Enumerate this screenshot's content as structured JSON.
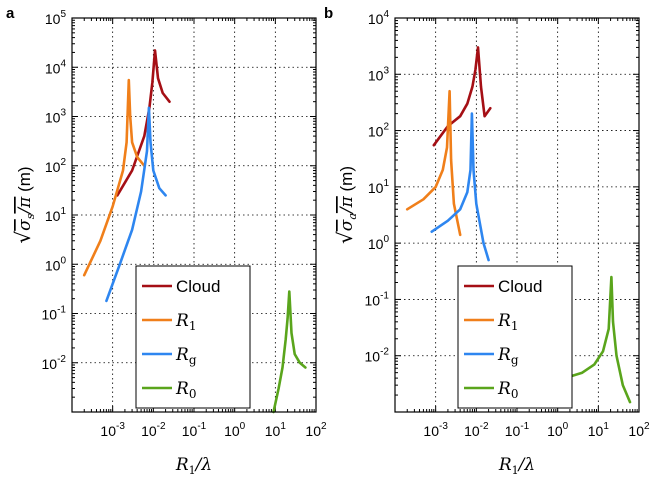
{
  "colors": {
    "Cloud": "#a50f15",
    "R1": "#f07f1a",
    "Rg": "#2e86f0",
    "R0": "#5aa51c"
  },
  "chart_data": [
    {
      "panel_label": "a",
      "type": "line",
      "x_scale": "log",
      "y_scale": "log",
      "grid": true,
      "xlim": [
        0.0001,
        100
      ],
      "ylim": [
        0.001,
        100000
      ],
      "x_ticks": [
        {
          "value": 0.001,
          "base": "10",
          "exp": "-3"
        },
        {
          "value": 0.01,
          "base": "10",
          "exp": "-2"
        },
        {
          "value": 0.1,
          "base": "10",
          "exp": "-1"
        },
        {
          "value": 1,
          "base": "10",
          "exp": "0"
        },
        {
          "value": 10,
          "base": "10",
          "exp": "1"
        },
        {
          "value": 100,
          "base": "10",
          "exp": "2"
        }
      ],
      "y_ticks": [
        {
          "value": 0.01,
          "base": "10",
          "exp": "-2"
        },
        {
          "value": 0.1,
          "base": "10",
          "exp": "-1"
        },
        {
          "value": 1,
          "base": "10",
          "exp": "0"
        },
        {
          "value": 10,
          "base": "10",
          "exp": "1"
        },
        {
          "value": 100,
          "base": "10",
          "exp": "2"
        },
        {
          "value": 1000,
          "base": "10",
          "exp": "3"
        },
        {
          "value": 10000,
          "base": "10",
          "exp": "4"
        },
        {
          "value": 100000,
          "base": "10",
          "exp": "5"
        }
      ],
      "xlabel": {
        "main": "R",
        "sub": "1",
        "tail": "/λ"
      },
      "ylabel": {
        "pre": "√",
        "main": "σ",
        "sub": "s",
        "tail": "/π",
        "unit": " (m)"
      },
      "legend_position": "lower-center",
      "series": [
        {
          "name": "Cloud",
          "key": "Cloud",
          "x": [
            0.0013,
            0.003,
            0.006,
            0.008,
            0.0095,
            0.011,
            0.013,
            0.017,
            0.025
          ],
          "y": [
            25,
            80,
            400,
            1500,
            5000,
            22000,
            6000,
            3000,
            2000
          ]
        },
        {
          "name": "R1",
          "key": "R1",
          "x": [
            0.0002,
            0.0005,
            0.001,
            0.0018,
            0.0022,
            0.0025,
            0.0027,
            0.003,
            0.004,
            0.006
          ],
          "y": [
            0.6,
            3,
            15,
            80,
            300,
            5500,
            1000,
            300,
            150,
            100
          ]
        },
        {
          "name": "Rg",
          "key": "Rg",
          "x": [
            0.0007,
            0.0015,
            0.003,
            0.005,
            0.007,
            0.0078,
            0.0085,
            0.01,
            0.014,
            0.02
          ],
          "y": [
            0.18,
            1,
            5,
            30,
            200,
            1500,
            300,
            80,
            35,
            25
          ]
        },
        {
          "name": "R0",
          "key": "R0",
          "x": [
            9,
            12,
            15,
            18,
            20,
            22,
            25,
            30,
            40,
            55
          ],
          "y": [
            0.001,
            0.003,
            0.008,
            0.03,
            0.08,
            0.28,
            0.04,
            0.015,
            0.01,
            0.008
          ]
        }
      ]
    },
    {
      "panel_label": "b",
      "type": "line",
      "x_scale": "log",
      "y_scale": "log",
      "grid": true,
      "xlim": [
        0.0001,
        100
      ],
      "ylim": [
        0.001,
        10000
      ],
      "x_ticks": [
        {
          "value": 0.001,
          "base": "10",
          "exp": "-3"
        },
        {
          "value": 0.01,
          "base": "10",
          "exp": "-2"
        },
        {
          "value": 0.1,
          "base": "10",
          "exp": "-1"
        },
        {
          "value": 1,
          "base": "10",
          "exp": "0"
        },
        {
          "value": 10,
          "base": "10",
          "exp": "1"
        },
        {
          "value": 100,
          "base": "10",
          "exp": "2"
        }
      ],
      "y_ticks": [
        {
          "value": 0.01,
          "base": "10",
          "exp": "-2"
        },
        {
          "value": 0.1,
          "base": "10",
          "exp": "-1"
        },
        {
          "value": 1,
          "base": "10",
          "exp": "0"
        },
        {
          "value": 10,
          "base": "10",
          "exp": "1"
        },
        {
          "value": 100,
          "base": "10",
          "exp": "2"
        },
        {
          "value": 1000,
          "base": "10",
          "exp": "3"
        },
        {
          "value": 10000,
          "base": "10",
          "exp": "4"
        }
      ],
      "xlabel": {
        "main": "R",
        "sub": "1",
        "tail": "/λ"
      },
      "ylabel": {
        "pre": "√",
        "main": "σ",
        "sub": "a",
        "tail": "/π",
        "unit": " (m)"
      },
      "legend_position": "lower-center",
      "series": [
        {
          "name": "Cloud",
          "key": "Cloud",
          "x": [
            0.0009,
            0.002,
            0.004,
            0.006,
            0.008,
            0.0095,
            0.011,
            0.013,
            0.016,
            0.022
          ],
          "y": [
            55,
            120,
            180,
            300,
            600,
            1200,
            3000,
            600,
            180,
            250
          ]
        },
        {
          "name": "R1",
          "key": "R1",
          "x": [
            0.0002,
            0.0005,
            0.001,
            0.0015,
            0.0019,
            0.0022,
            0.0024,
            0.0028,
            0.004
          ],
          "y": [
            4,
            6,
            10,
            20,
            50,
            500,
            30,
            5,
            1.4
          ]
        },
        {
          "name": "Rg",
          "key": "Rg",
          "x": [
            0.0008,
            0.002,
            0.004,
            0.006,
            0.0072,
            0.0078,
            0.0085,
            0.01,
            0.015,
            0.02
          ],
          "y": [
            1.6,
            2.5,
            4,
            8,
            20,
            200,
            20,
            5,
            1,
            0.5
          ]
        },
        {
          "name": "R0",
          "key": "R0",
          "x": [
            1.5,
            4,
            8,
            13,
            18,
            21,
            23,
            28,
            40,
            60
          ],
          "y": [
            0.004,
            0.005,
            0.007,
            0.012,
            0.03,
            0.25,
            0.04,
            0.01,
            0.003,
            0.0015
          ]
        }
      ]
    }
  ],
  "legend": [
    {
      "key": "Cloud",
      "label": "Cloud",
      "italic": false,
      "main": "Cloud",
      "sub": ""
    },
    {
      "key": "R1",
      "label": "R1",
      "italic": true,
      "main": "R",
      "sub": "1"
    },
    {
      "key": "Rg",
      "label": "Rg",
      "italic": true,
      "main": "R",
      "sub": "g"
    },
    {
      "key": "R0",
      "label": "R0",
      "italic": true,
      "main": "R",
      "sub": "0"
    }
  ]
}
